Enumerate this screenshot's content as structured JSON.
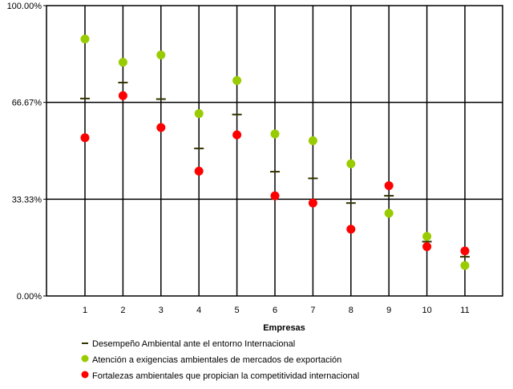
{
  "chart_data": {
    "type": "scatter",
    "xlabel": "Empresas",
    "ylabel": "",
    "title": "",
    "categories": [
      "1",
      "2",
      "3",
      "4",
      "5",
      "6",
      "7",
      "8",
      "9",
      "10",
      "11"
    ],
    "ylim": [
      0,
      100
    ],
    "yticks": [
      0,
      33.33,
      66.67,
      100
    ],
    "ytick_labels": [
      "0.00%",
      "33.33%",
      "66.67%",
      "100.00%"
    ],
    "grid": "horizontal and vertical lines",
    "legend_position": "bottom",
    "series": [
      {
        "name": "Desempeño Ambiental ante el entorno Internacional",
        "marker": "dash",
        "color": "#333300",
        "values": [
          68.0,
          73.5,
          67.8,
          50.8,
          62.5,
          42.8,
          40.5,
          32.0,
          34.5,
          18.7,
          13.5
        ]
      },
      {
        "name": "Atención a exigencias ambientales de mercados de exportación",
        "marker": "circle",
        "color": "#99cc00",
        "values": [
          88.5,
          80.5,
          83.0,
          62.8,
          74.2,
          55.8,
          53.5,
          45.5,
          28.5,
          20.5,
          10.5
        ]
      },
      {
        "name": "Fortalezas ambientales que propician la competitividad internacional",
        "marker": "circle",
        "color": "#ff0000",
        "values": [
          54.5,
          69.0,
          58.0,
          43.0,
          55.5,
          34.5,
          32.0,
          23.0,
          38.0,
          17.0,
          15.5
        ]
      }
    ]
  }
}
